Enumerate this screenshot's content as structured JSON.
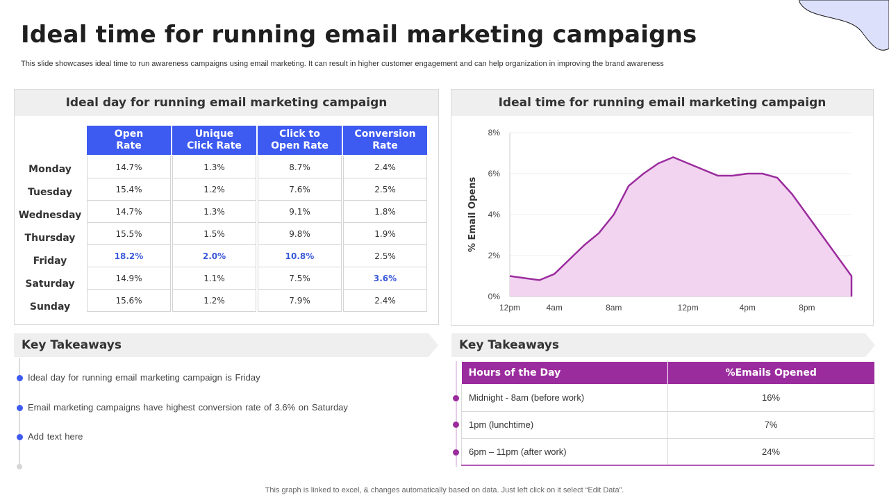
{
  "title": "Ideal time for running email marketing campaigns",
  "subtitle": "This slide showcases ideal time to run awareness campaigns using email marketing. It can result in higher customer engagement and can help organization in improving the brand awareness",
  "footer": "This graph is linked to excel, & changes automatically based on data. Just left click on it select “Edit Data”.",
  "colors": {
    "accent_blue": "#3d5af1",
    "accent_purple": "#9b2c9e",
    "area_fill": "#f2d4f0",
    "header_gray": "#efefef"
  },
  "day_panel": {
    "header": "Ideal day for running email marketing campaign",
    "columns": [
      "Open\nRate",
      "Unique\nClick Rate",
      "Click to\nOpen Rate",
      "Conversion\nRate"
    ],
    "rows": [
      {
        "day": "Monday",
        "values": [
          "14.7%",
          "1.3%",
          "8.7%",
          "2.4%"
        ]
      },
      {
        "day": "Tuesday",
        "values": [
          "15.4%",
          "1.2%",
          "7.6%",
          "2.5%"
        ]
      },
      {
        "day": "Wednesday",
        "values": [
          "14.7%",
          "1.3%",
          "9.1%",
          "1.8%"
        ]
      },
      {
        "day": "Thursday",
        "values": [
          "15.5%",
          "1.5%",
          "9.8%",
          "1.9%"
        ]
      },
      {
        "day": "Friday",
        "values": [
          "18.2%",
          "2.0%",
          "10.8%",
          "2.5%"
        ]
      },
      {
        "day": "Saturday",
        "values": [
          "14.9%",
          "1.1%",
          "7.5%",
          "3.6%"
        ]
      },
      {
        "day": "Sunday",
        "values": [
          "15.6%",
          "1.2%",
          "7.9%",
          "2.4%"
        ]
      }
    ]
  },
  "time_panel": {
    "header": "Ideal time for running email marketing campaign"
  },
  "chart_data": {
    "type": "area",
    "title": "Ideal time for running email marketing campaign",
    "xlabel": "",
    "ylabel": "% Email Opens",
    "x": [
      0,
      1,
      2,
      3,
      4,
      5,
      6,
      7,
      8,
      9,
      10,
      11,
      12,
      13,
      14,
      15,
      16,
      17,
      18,
      19,
      20,
      21,
      22,
      23
    ],
    "values": [
      1.0,
      0.9,
      0.8,
      1.1,
      1.8,
      2.5,
      3.1,
      4.0,
      5.4,
      6.0,
      6.5,
      6.8,
      6.5,
      6.2,
      5.9,
      5.9,
      6.0,
      6.0,
      5.8,
      5.0,
      4.0,
      3.0,
      2.0,
      1.0
    ],
    "x_ticks": [
      {
        "x": 0,
        "label": "12pm"
      },
      {
        "x": 3,
        "label": "4am"
      },
      {
        "x": 7,
        "label": "8am"
      },
      {
        "x": 12,
        "label": "12pm"
      },
      {
        "x": 16,
        "label": "4pm"
      },
      {
        "x": 20,
        "label": "8pm"
      }
    ],
    "y_ticks": [
      "0%",
      "2%",
      "4%",
      "6%",
      "8%"
    ],
    "xlim": [
      0,
      23
    ],
    "ylim": [
      0,
      8
    ],
    "grid": true,
    "line_color": "#9b2c9e",
    "fill_color": "#f2d4f0"
  },
  "takeaways_left": {
    "header": "Key Takeaways",
    "items": [
      "Ideal day for running email marketing campaign is Friday",
      "Email marketing campaigns have highest conversion  rate of 3.6% on Saturday",
      "Add text here"
    ]
  },
  "takeaways_right": {
    "header": "Key Takeaways",
    "columns": [
      "Hours of the Day",
      "%Emails Opened"
    ],
    "rows": [
      {
        "hours": "Midnight -  8am (before  work)",
        "pct": "16%"
      },
      {
        "hours": "1pm (lunchtime)",
        "pct": "7%"
      },
      {
        "hours": "6pm – 11pm (after  work)",
        "pct": "24%"
      }
    ]
  }
}
